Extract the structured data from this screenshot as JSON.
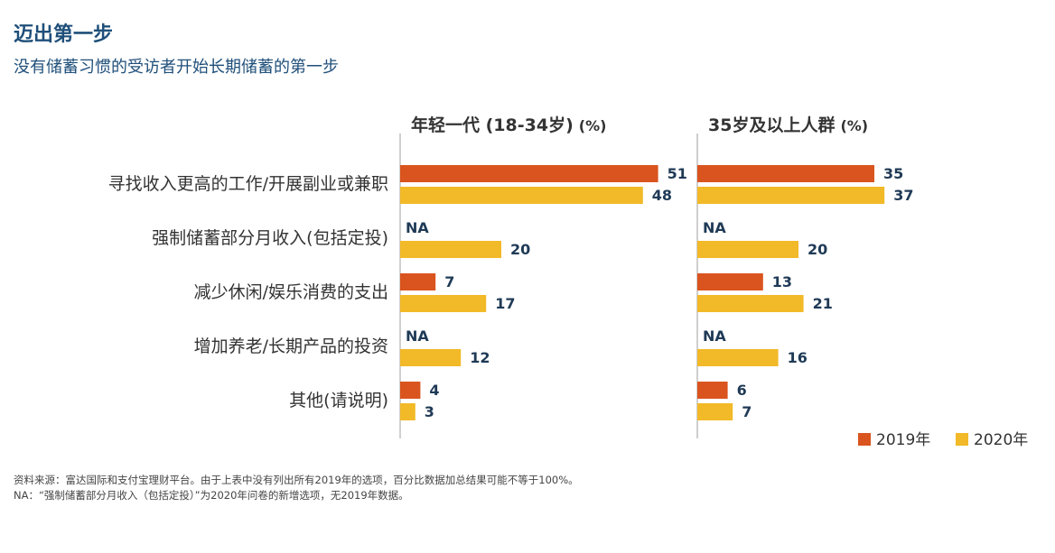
{
  "header": {
    "title": "迈出第一步",
    "subtitle": "没有储蓄习惯的受访者开始长期储蓄的第一步"
  },
  "colors": {
    "series_2019": "#d9541e",
    "series_2020": "#f2b928",
    "axis": "#bfbfbf"
  },
  "chart_data": {
    "type": "bar",
    "orientation": "horizontal",
    "categories": [
      "寻找收入更高的工作/开展副业或兼职",
      "强制储蓄部分月收入(包括定投)",
      "减少休闲/娱乐消费的支出",
      "增加养老/长期产品的投资",
      "其他(请说明)"
    ],
    "missing_label": "NA",
    "panels": [
      {
        "title": "年轻一代 (18-34岁)",
        "unit": "(%)",
        "series": [
          {
            "name": "2019年",
            "values": [
              51,
              null,
              7,
              null,
              4
            ]
          },
          {
            "name": "2020年",
            "values": [
              48,
              20,
              17,
              12,
              3
            ]
          }
        ]
      },
      {
        "title": "35岁及以上人群",
        "unit": "(%)",
        "series": [
          {
            "name": "2019年",
            "values": [
              35,
              null,
              13,
              null,
              6
            ]
          },
          {
            "name": "2020年",
            "values": [
              37,
              20,
              21,
              16,
              7
            ]
          }
        ]
      }
    ],
    "xlim": [
      0,
      55
    ],
    "legend": {
      "position": "bottom-right",
      "entries": [
        "2019年",
        "2020年"
      ]
    }
  },
  "footnotes": [
    "资料来源：富达国际和支付宝理财平台。由于上表中没有列出所有2019年的选项，百分比数据加总结果可能不等于100%。",
    "NA：“强制储蓄部分月收入（包括定投）”为2020年问卷的新增选项，无2019年数据。"
  ]
}
